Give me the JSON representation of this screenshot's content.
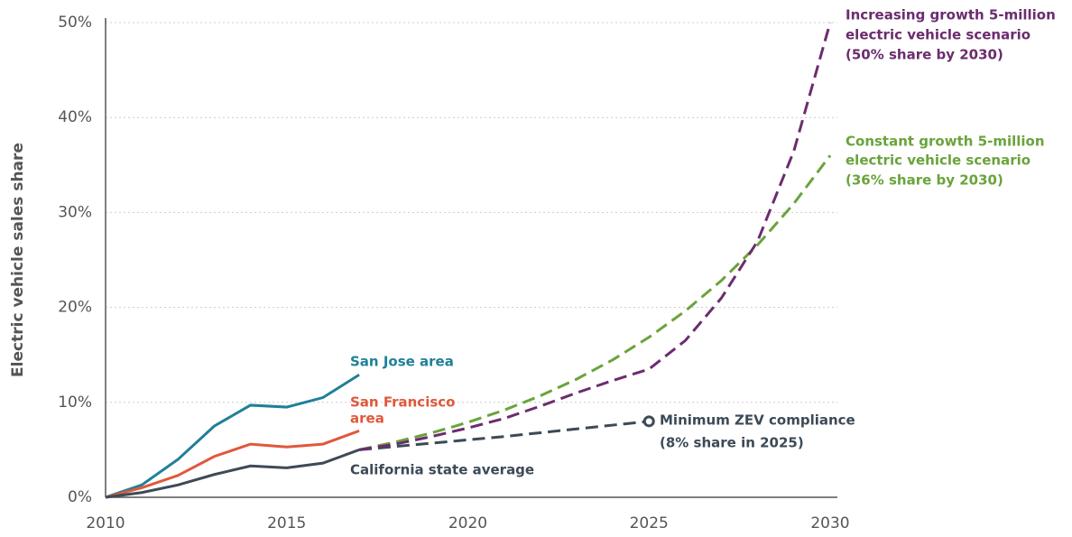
{
  "chart_data": {
    "type": "line",
    "y_label": "Electric vehicle sales share",
    "xlim": [
      2010,
      2030
    ],
    "xticks": [
      2010,
      2015,
      2020,
      2025,
      2030
    ],
    "ylim": [
      0,
      50
    ],
    "yticks": [
      {
        "value": 0,
        "label": "0%"
      },
      {
        "value": 10,
        "label": "10%"
      },
      {
        "value": 20,
        "label": "20%"
      },
      {
        "value": 30,
        "label": "30%"
      },
      {
        "value": 40,
        "label": "40%"
      },
      {
        "value": 50,
        "label": "50%"
      }
    ],
    "grid": true,
    "series": [
      {
        "label": [
          "San Jose area"
        ],
        "color": "#1f8098",
        "style": "solid",
        "x": [
          2010,
          2011,
          2012,
          2013,
          2014,
          2015,
          2016,
          2017
        ],
        "values": [
          0,
          1.3,
          4,
          7.5,
          9.7,
          9.5,
          10.5,
          12.9
        ]
      },
      {
        "label": [
          "San Francisco",
          "area"
        ],
        "color": "#e0583a",
        "style": "solid",
        "x": [
          2010,
          2011,
          2012,
          2013,
          2014,
          2015,
          2016,
          2017
        ],
        "values": [
          0,
          1,
          2.3,
          4.3,
          5.6,
          5.3,
          5.6,
          7.0
        ]
      },
      {
        "label": [
          "California state average"
        ],
        "color": "#3d4a57",
        "style": "solid",
        "x": [
          2010,
          2011,
          2012,
          2013,
          2014,
          2015,
          2016,
          2017
        ],
        "values": [
          0,
          0.5,
          1.3,
          2.4,
          3.3,
          3.1,
          3.6,
          5.0
        ]
      },
      {
        "label": [
          "Minimum ZEV compliance",
          "(8% share in 2025)"
        ],
        "color": "#3d4a57",
        "style": "dashed",
        "end_marker": "open-circle",
        "x": [
          2017,
          2019,
          2021,
          2023,
          2025
        ],
        "values": [
          5,
          5.7,
          6.4,
          7.2,
          8
        ]
      },
      {
        "label": [
          "Constant growth 5-million",
          "electric vehicle scenario",
          "(36% share by 2030)"
        ],
        "color": "#6aa33c",
        "style": "dashed",
        "x": [
          2017,
          2018,
          2019,
          2020,
          2021,
          2022,
          2023,
          2024,
          2025,
          2026,
          2027,
          2028,
          2029,
          2030
        ],
        "values": [
          5,
          5.82,
          6.78,
          7.89,
          9.18,
          10.69,
          12.44,
          14.48,
          16.86,
          19.62,
          22.84,
          26.59,
          30.95,
          36
        ]
      },
      {
        "label": [
          "Increasing growth 5-million",
          "electric vehicle scenario",
          "(50% share by 2030)"
        ],
        "color": "#6b2c6e",
        "style": "dashed",
        "x": [
          2017,
          2018,
          2019,
          2020,
          2021,
          2022,
          2023,
          2024,
          2025,
          2026,
          2027,
          2028,
          2029,
          2030
        ],
        "values": [
          5,
          5.6,
          6.4,
          7.3,
          8.3,
          9.6,
          11,
          12.3,
          13.5,
          16.5,
          21,
          27,
          36.5,
          50
        ]
      }
    ]
  }
}
